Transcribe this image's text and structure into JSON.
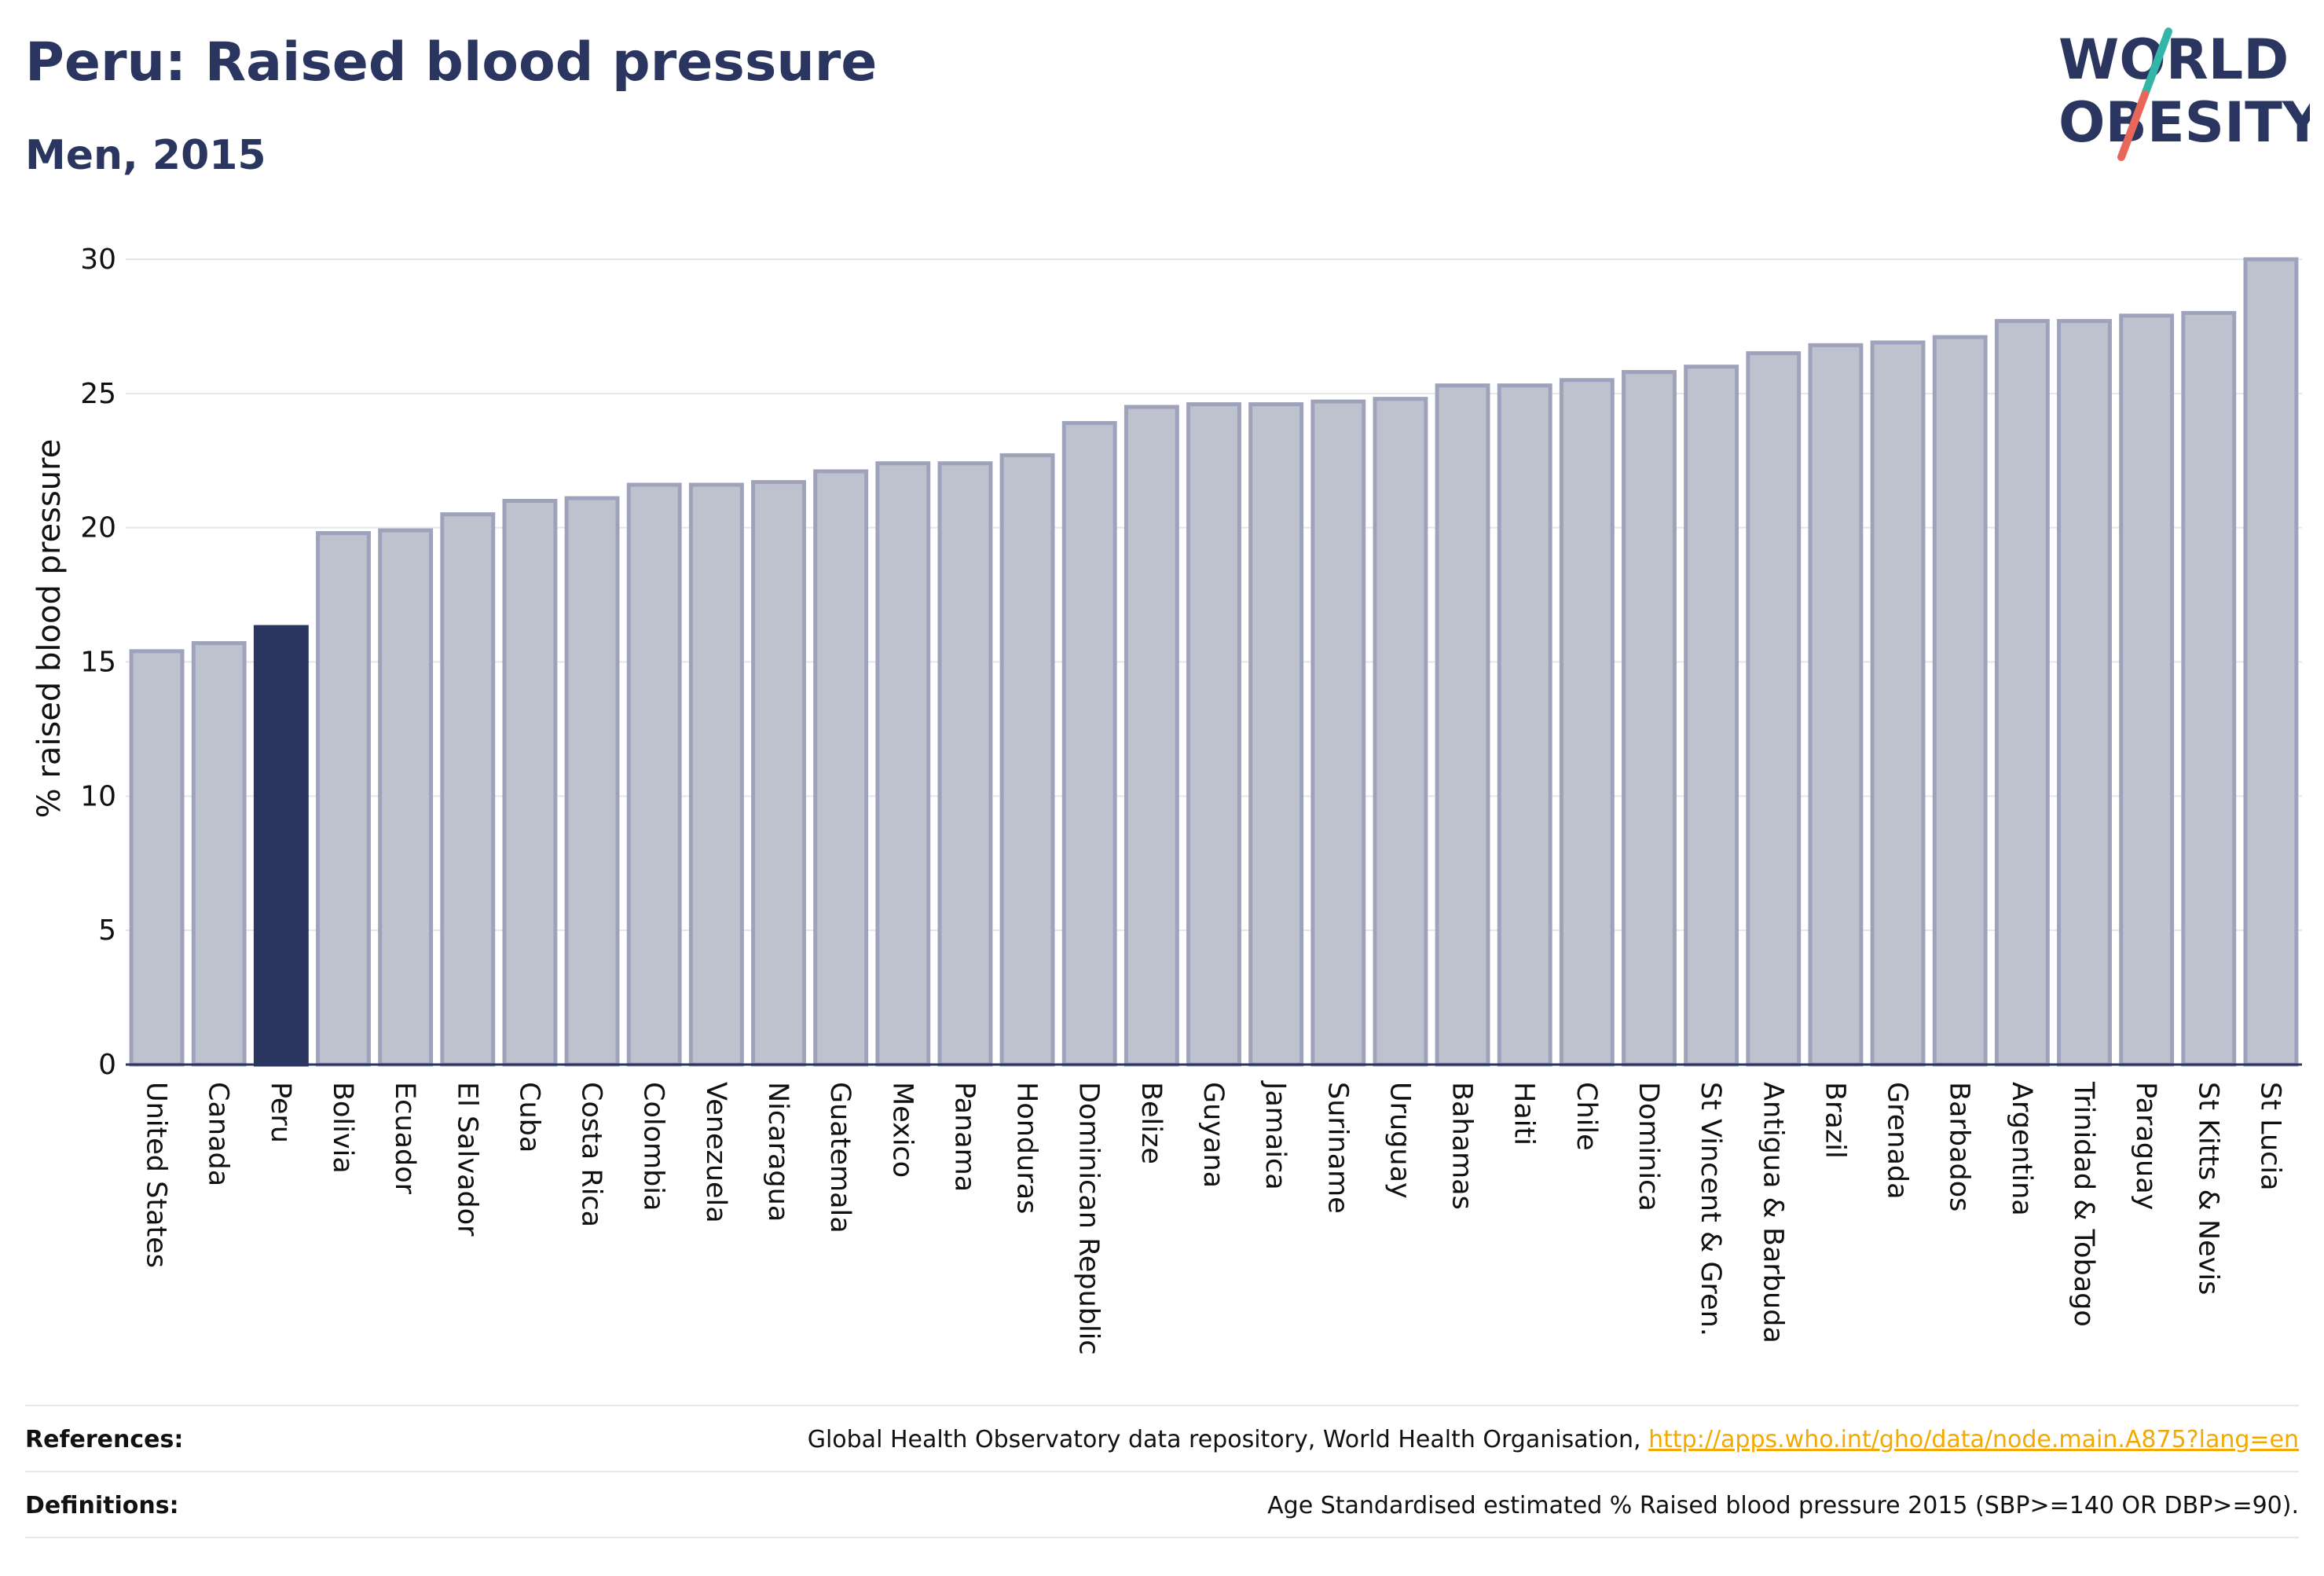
{
  "header": {
    "title": "Peru: Raised blood pressure",
    "subtitle": "Men, 2015"
  },
  "logo": {
    "line1": "WORLD",
    "line2": "OBESITY",
    "colors": {
      "text": "#2a365f",
      "slash_top": "#33b5a8",
      "slash_bottom": "#e8675a"
    }
  },
  "colors": {
    "highlight_bar": "#2a365f",
    "bar_fill": "#bec1ce",
    "bar_stroke": "#9ea3bb",
    "grid": "#e5e6ea",
    "axis": "#2a365f"
  },
  "chart_data": {
    "type": "bar",
    "title": "Peru: Raised blood pressure",
    "subtitle": "Men, 2015",
    "xlabel": "",
    "ylabel": "% raised blood pressure",
    "ylim": [
      0,
      30
    ],
    "yticks": [
      0,
      5,
      10,
      15,
      20,
      25,
      30
    ],
    "grid": true,
    "highlight": "Peru",
    "categories": [
      "United States",
      "Canada",
      "Peru",
      "Bolivia",
      "Ecuador",
      "El Salvador",
      "Cuba",
      "Costa Rica",
      "Colombia",
      "Venezuela",
      "Nicaragua",
      "Guatemala",
      "Mexico",
      "Panama",
      "Honduras",
      "Dominican Republic",
      "Belize",
      "Guyana",
      "Jamaica",
      "Suriname",
      "Uruguay",
      "Bahamas",
      "Haiti",
      "Chile",
      "Dominica",
      "St Vincent & Gren.",
      "Antigua & Barbuda",
      "Brazil",
      "Grenada",
      "Barbados",
      "Argentina",
      "Trinidad & Tobago",
      "Paraguay",
      "St Kitts & Nevis",
      "St Lucia"
    ],
    "values": [
      15.4,
      15.7,
      16.3,
      19.8,
      19.9,
      20.5,
      21.0,
      21.1,
      21.6,
      21.6,
      21.7,
      22.1,
      22.4,
      22.4,
      22.7,
      23.9,
      24.5,
      24.6,
      24.6,
      24.7,
      24.8,
      25.3,
      25.3,
      25.5,
      25.8,
      26.0,
      26.5,
      26.8,
      26.9,
      27.1,
      27.7,
      27.7,
      27.9,
      28.0,
      30.0
    ]
  },
  "footer": {
    "references_label": "References:",
    "references_text": "Global Health Observatory data repository, World Health Organisation,",
    "references_link": "http://apps.who.int/gho/data/node.main.A875?lang=en",
    "definitions_label": "Definitions:",
    "definitions_text": "Age Standardised estimated % Raised blood pressure 2015 (SBP>=140 OR DBP>=90)."
  }
}
